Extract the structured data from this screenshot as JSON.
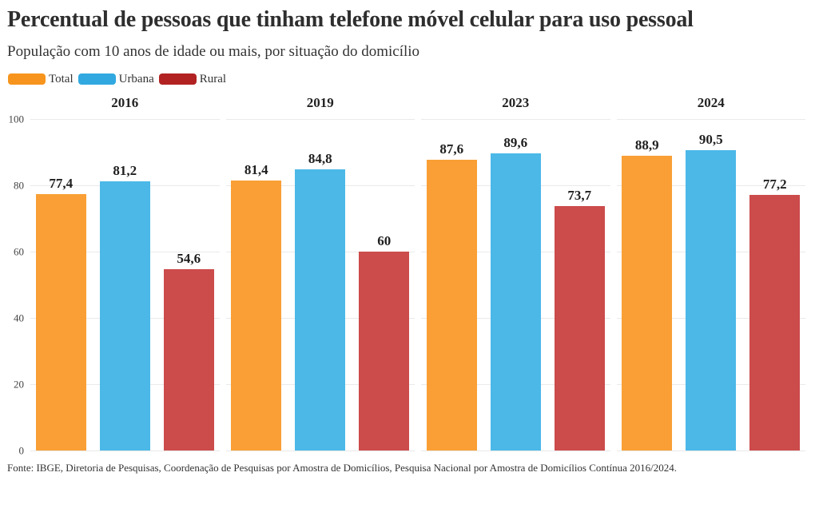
{
  "title": "Percentual de pessoas que tinham telefone móvel celular para uso pessoal",
  "subtitle": "População com 10 anos de idade ou mais, por situação do domicílio",
  "footer": "Fonte: IBGE, Diretoria de Pesquisas, Coordenação de Pesquisas por Amostra de Domicílios, Pesquisa Nacional por Amostra de Domicílios Contínua 2016/2024.",
  "colors": {
    "legend_total": "#F7941D",
    "legend_urbana": "#31A9E0",
    "legend_rural": "#B22222",
    "bar_total": "#F99F35",
    "bar_urbana": "#4BB8E8",
    "bar_rural": "#CC4B4B",
    "gridline": "#E9E9E9",
    "text": "#2E2E2E"
  },
  "legend": [
    {
      "label": "Total",
      "color": "#F7941D"
    },
    {
      "label": "Urbana",
      "color": "#31A9E0"
    },
    {
      "label": "Rural",
      "color": "#B22222"
    }
  ],
  "chart_data": {
    "type": "bar",
    "title": "Percentual de pessoas que tinham telefone móvel celular para uso pessoal",
    "subtitle": "População com 10 anos de idade ou mais, por situação do domicílio",
    "categories": [
      "2016",
      "2019",
      "2023",
      "2024"
    ],
    "series": [
      {
        "name": "Total",
        "color": "#F99F35",
        "values": [
          77.4,
          81.4,
          87.6,
          88.9
        ],
        "labels": [
          "77,4",
          "81,4",
          "87,6",
          "88,9"
        ]
      },
      {
        "name": "Urbana",
        "color": "#4BB8E8",
        "values": [
          81.2,
          84.8,
          89.6,
          90.5
        ],
        "labels": [
          "81,2",
          "84,8",
          "89,6",
          "90,5"
        ]
      },
      {
        "name": "Rural",
        "color": "#CC4B4B",
        "values": [
          54.6,
          60.0,
          73.7,
          77.2
        ],
        "labels": [
          "54,6",
          "60",
          "73,7",
          "77,2"
        ]
      }
    ],
    "xlabel": "",
    "ylabel": "",
    "ylim": [
      0,
      100
    ],
    "yticks": [
      0,
      20,
      40,
      60,
      80,
      100
    ],
    "grid": true,
    "legend_position": "top",
    "value_label_decimal_separator": ",",
    "facet_by_category": true
  }
}
